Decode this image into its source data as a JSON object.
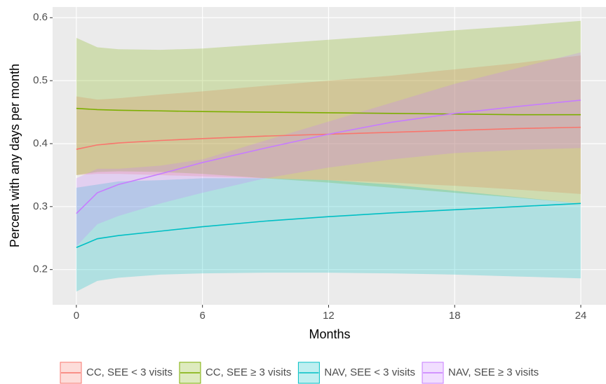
{
  "chart_data": {
    "type": "ribbon-line",
    "x_label": "Months",
    "y_label": "Percent with any days per month",
    "x": [
      0,
      1,
      2,
      4,
      6,
      9,
      12,
      15,
      18,
      21,
      24
    ],
    "xlim": [
      -1.13,
      25.2
    ],
    "xticks": [
      0,
      6,
      12,
      18,
      24
    ],
    "ylim": [
      0.144,
      0.617
    ],
    "yticks": [
      0.2,
      0.3,
      0.4,
      0.5,
      0.6
    ],
    "grid": true,
    "legend": "bottom",
    "series": [
      {
        "name": "CC, SEE < 3 visits",
        "color": "#F8766D",
        "values": [
          0.391,
          0.398,
          0.401,
          0.405,
          0.408,
          0.412,
          0.415,
          0.418,
          0.421,
          0.424,
          0.426
        ],
        "lower": [
          0.35,
          0.352,
          0.352,
          0.35,
          0.348,
          0.345,
          0.342,
          0.338,
          0.333,
          0.327,
          0.32
        ],
        "upper": [
          0.475,
          0.47,
          0.472,
          0.478,
          0.483,
          0.492,
          0.5,
          0.508,
          0.518,
          0.528,
          0.54
        ]
      },
      {
        "name": "CC, SEE ≥ 3 visits",
        "color": "#7CAE00",
        "values": [
          0.456,
          0.454,
          0.453,
          0.452,
          0.451,
          0.45,
          0.449,
          0.448,
          0.447,
          0.446,
          0.446
        ],
        "lower": [
          0.35,
          0.355,
          0.356,
          0.355,
          0.352,
          0.345,
          0.338,
          0.33,
          0.322,
          0.314,
          0.305
        ],
        "upper": [
          0.568,
          0.553,
          0.55,
          0.549,
          0.551,
          0.558,
          0.565,
          0.572,
          0.58,
          0.587,
          0.595
        ]
      },
      {
        "name": "NAV, SEE < 3 visits",
        "color": "#00BFC4",
        "values": [
          0.235,
          0.249,
          0.254,
          0.261,
          0.268,
          0.277,
          0.284,
          0.29,
          0.295,
          0.3,
          0.305
        ],
        "lower": [
          0.165,
          0.182,
          0.187,
          0.192,
          0.194,
          0.195,
          0.195,
          0.194,
          0.192,
          0.189,
          0.186
        ],
        "upper": [
          0.33,
          0.335,
          0.34,
          0.342,
          0.345,
          0.345,
          0.342,
          0.335,
          0.325,
          0.315,
          0.305
        ]
      },
      {
        "name": "NAV, SEE ≥ 3 visits",
        "color": "#C77CFF",
        "values": [
          0.289,
          0.322,
          0.335,
          0.352,
          0.37,
          0.393,
          0.415,
          0.434,
          0.448,
          0.459,
          0.469
        ],
        "lower": [
          0.237,
          0.272,
          0.285,
          0.305,
          0.322,
          0.345,
          0.362,
          0.375,
          0.385,
          0.39,
          0.393
        ],
        "upper": [
          0.345,
          0.36,
          0.36,
          0.365,
          0.375,
          0.405,
          0.435,
          0.465,
          0.495,
          0.52,
          0.545
        ]
      }
    ]
  }
}
